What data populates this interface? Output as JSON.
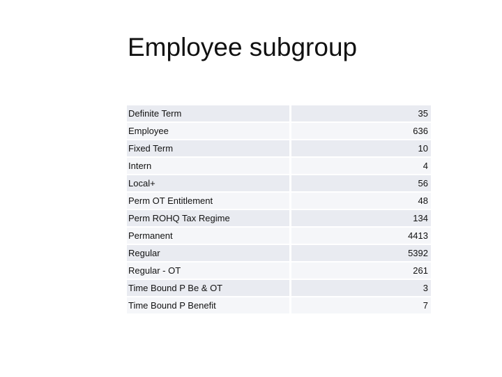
{
  "slide": {
    "title": "Employee subgroup"
  },
  "table": {
    "rows": [
      {
        "label": "Definite Term",
        "value": "35"
      },
      {
        "label": "Employee",
        "value": "636"
      },
      {
        "label": "Fixed Term",
        "value": "10"
      },
      {
        "label": "Intern",
        "value": "4"
      },
      {
        "label": "Local+",
        "value": "56"
      },
      {
        "label": "Perm OT Entitlement",
        "value": "48"
      },
      {
        "label": "Perm ROHQ Tax Regime",
        "value": "134"
      },
      {
        "label": "Permanent",
        "value": "4413"
      },
      {
        "label": "Regular",
        "value": "5392"
      },
      {
        "label": "Regular - OT",
        "value": "261"
      },
      {
        "label": "Time Bound P Be & OT",
        "value": "3"
      },
      {
        "label": "Time Bound P Benefit",
        "value": "7"
      }
    ]
  }
}
